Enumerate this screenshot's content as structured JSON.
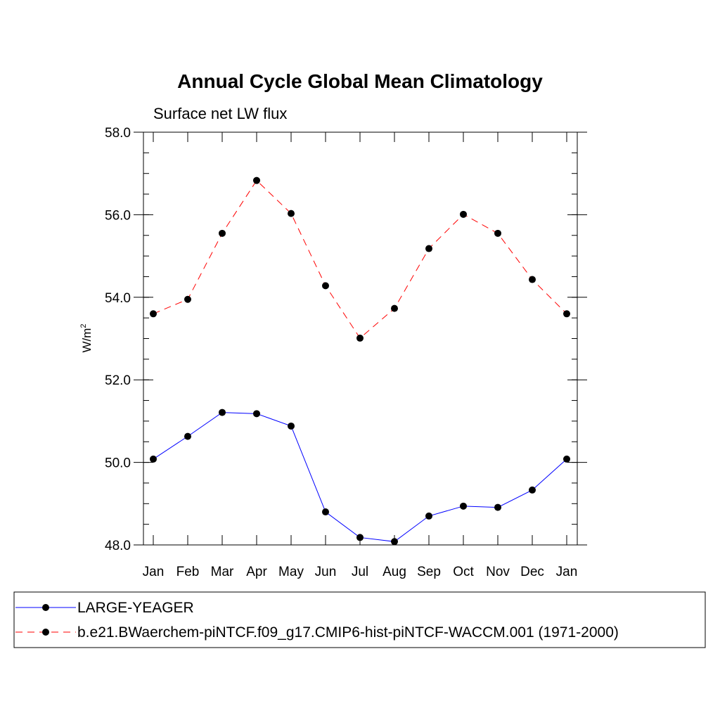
{
  "chart_data": {
    "type": "line",
    "title": "Annual Cycle Global Mean Climatology",
    "subtitle": "Surface net LW flux",
    "xlabel": "",
    "ylabel": "W/m",
    "ylabel_superscript": "2",
    "categories": [
      "Jan",
      "Feb",
      "Mar",
      "Apr",
      "May",
      "Jun",
      "Jul",
      "Aug",
      "Sep",
      "Oct",
      "Nov",
      "Dec",
      "Jan"
    ],
    "ylim": [
      48.0,
      58.0
    ],
    "yticks": [
      48.0,
      50.0,
      52.0,
      54.0,
      56.0,
      58.0
    ],
    "ytick_labels": [
      "48.0",
      "50.0",
      "52.0",
      "54.0",
      "56.0",
      "58.0"
    ],
    "minor_ystep": 0.5,
    "grid": false,
    "legend_position": "bottom",
    "series": [
      {
        "name": "LARGE-YEAGER",
        "color": "#0000ff",
        "style": "solid",
        "marker": "circle",
        "values": [
          50.08,
          50.63,
          51.21,
          51.18,
          50.88,
          48.8,
          48.18,
          48.08,
          48.7,
          48.94,
          48.91,
          49.33,
          50.08
        ]
      },
      {
        "name": "b.e21.BWaerchem-piNTCF.f09_g17.CMIP6-hist-piNTCF-WACCM.001 (1971-2000)",
        "color": "#ff0000",
        "style": "dashed",
        "marker": "circle",
        "values": [
          53.6,
          53.95,
          55.55,
          56.83,
          56.03,
          54.28,
          53.01,
          53.73,
          55.18,
          56.01,
          55.55,
          54.43,
          53.6
        ]
      }
    ]
  }
}
